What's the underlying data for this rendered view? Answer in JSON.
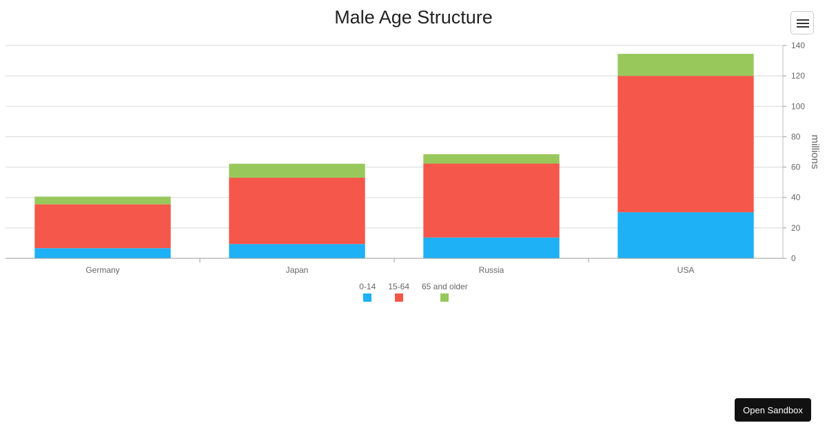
{
  "menu": {
    "icon": "hamburger-menu-icon"
  },
  "sandbox": {
    "label": "Open Sandbox"
  },
  "chart_data": {
    "type": "bar",
    "stacked": true,
    "title": "Male Age Structure",
    "categories": [
      "Germany",
      "Japan",
      "Russia",
      "USA"
    ],
    "series": [
      {
        "name": "0-14",
        "color": "#1eb1f5",
        "values": [
          6.7,
          9.4,
          13.7,
          30.3
        ]
      },
      {
        "name": "15-64",
        "color": "#f5574a",
        "values": [
          28.8,
          43.6,
          48.6,
          89.7
        ]
      },
      {
        "name": "65 and older",
        "color": "#98c85c",
        "values": [
          5.1,
          9.2,
          6.2,
          14.5
        ]
      }
    ],
    "ylabel": "millions",
    "ylim": [
      0,
      140
    ],
    "yticks": [
      0,
      20,
      40,
      60,
      80,
      100,
      120,
      140
    ],
    "y_axis_position": "right",
    "grid": true,
    "legend_position": "bottom-center"
  }
}
